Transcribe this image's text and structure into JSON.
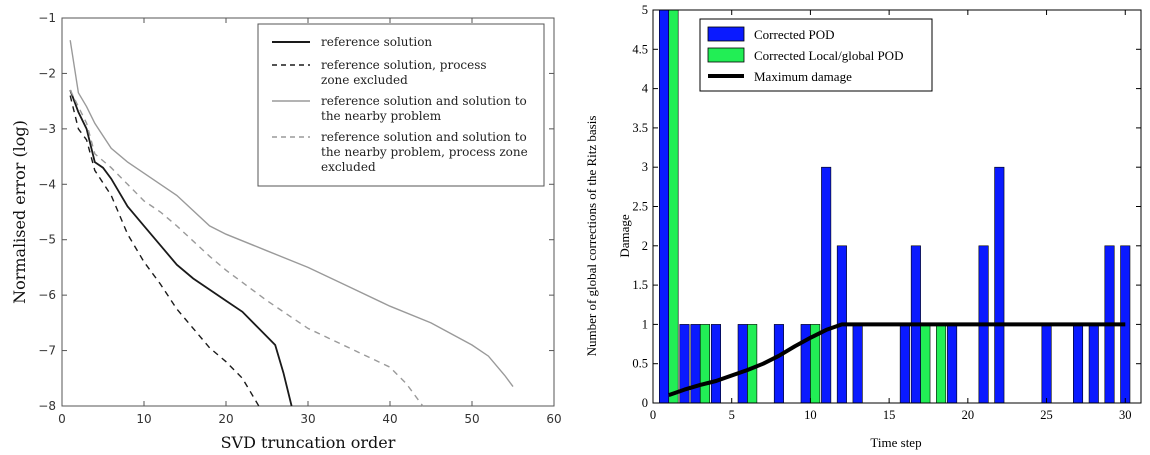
{
  "chart_data": [
    {
      "type": "line",
      "xlabel": "SVD truncation order",
      "ylabel": "Normalised error (log)",
      "xlim": [
        0,
        60
      ],
      "ylim": [
        -8,
        -1
      ],
      "xticks": [
        "0",
        "10",
        "20",
        "30",
        "40",
        "50",
        "60"
      ],
      "yticks": [
        "-1",
        "-2",
        "-3",
        "-4",
        "-5",
        "-6",
        "-7",
        "-8"
      ],
      "legend_position": "top-right",
      "series": [
        {
          "name": "reference solution",
          "style": "solid",
          "color": "#1a1a1a",
          "points": [
            [
              1,
              -2.3
            ],
            [
              2,
              -2.7
            ],
            [
              3,
              -3.0
            ],
            [
              4,
              -3.6
            ],
            [
              5,
              -3.7
            ],
            [
              6,
              -3.9
            ],
            [
              8,
              -4.4
            ],
            [
              10,
              -4.75
            ],
            [
              12,
              -5.1
            ],
            [
              14,
              -5.45
            ],
            [
              16,
              -5.7
            ],
            [
              18,
              -5.9
            ],
            [
              20,
              -6.1
            ],
            [
              22,
              -6.3
            ],
            [
              24,
              -6.6
            ],
            [
              26,
              -6.9
            ],
            [
              27,
              -7.4
            ],
            [
              28,
              -8.0
            ]
          ]
        },
        {
          "name": "reference solution, process zone excluded",
          "style": "dashed",
          "color": "#1a1a1a",
          "points": [
            [
              1,
              -2.4
            ],
            [
              2,
              -3.0
            ],
            [
              3,
              -3.2
            ],
            [
              4,
              -3.75
            ],
            [
              6,
              -4.2
            ],
            [
              8,
              -4.9
            ],
            [
              10,
              -5.4
            ],
            [
              12,
              -5.8
            ],
            [
              14,
              -6.25
            ],
            [
              16,
              -6.6
            ],
            [
              18,
              -6.95
            ],
            [
              20,
              -7.2
            ],
            [
              22,
              -7.5
            ],
            [
              24,
              -8.0
            ]
          ]
        },
        {
          "name": "reference solution and solution to the nearby problem",
          "style": "solid",
          "color": "#9a9a9a",
          "points": [
            [
              1,
              -1.4
            ],
            [
              2,
              -2.35
            ],
            [
              3,
              -2.6
            ],
            [
              4,
              -2.9
            ],
            [
              6,
              -3.35
            ],
            [
              8,
              -3.6
            ],
            [
              10,
              -3.8
            ],
            [
              12,
              -4.0
            ],
            [
              14,
              -4.2
            ],
            [
              18,
              -4.75
            ],
            [
              20,
              -4.9
            ],
            [
              25,
              -5.2
            ],
            [
              30,
              -5.5
            ],
            [
              35,
              -5.85
            ],
            [
              40,
              -6.2
            ],
            [
              45,
              -6.5
            ],
            [
              50,
              -6.9
            ],
            [
              52,
              -7.1
            ],
            [
              54,
              -7.45
            ],
            [
              55,
              -7.65
            ]
          ]
        },
        {
          "name": "reference solution and solution to the nearby problem, process zone excluded",
          "style": "dashed",
          "color": "#9a9a9a",
          "points": [
            [
              1,
              -2.3
            ],
            [
              2,
              -2.6
            ],
            [
              3,
              -2.9
            ],
            [
              4,
              -3.45
            ],
            [
              6,
              -3.7
            ],
            [
              8,
              -4.0
            ],
            [
              10,
              -4.3
            ],
            [
              12,
              -4.5
            ],
            [
              14,
              -4.75
            ],
            [
              18,
              -5.3
            ],
            [
              20,
              -5.55
            ],
            [
              25,
              -6.1
            ],
            [
              30,
              -6.6
            ],
            [
              35,
              -6.95
            ],
            [
              40,
              -7.3
            ],
            [
              42,
              -7.6
            ],
            [
              44,
              -8.0
            ]
          ]
        }
      ]
    },
    {
      "type": "bar",
      "xlabel": "Time step",
      "ylabel": "Number of global corrections of the Ritz basis",
      "ylabel2": "Damage",
      "xlim": [
        0,
        31
      ],
      "ylim": [
        0,
        5
      ],
      "xticks": [
        "0",
        "5",
        "10",
        "15",
        "20",
        "25",
        "30"
      ],
      "yticks": [
        "0",
        "0.5",
        "1",
        "1.5",
        "2",
        "2.5",
        "3",
        "3.5",
        "4",
        "4.5",
        "5"
      ],
      "legend_position": "top-left",
      "series": [
        {
          "name": "Corrected POD",
          "color": "#0a1aff",
          "x": [
            1,
            2,
            3,
            4,
            6,
            8,
            10,
            11,
            12,
            13,
            16,
            17,
            19,
            21,
            22,
            25,
            27,
            28,
            29,
            30
          ],
          "values": [
            5,
            1,
            1,
            1,
            1,
            1,
            1,
            3,
            2,
            1,
            1,
            2,
            1,
            2,
            3,
            1,
            1,
            1,
            2,
            2
          ]
        },
        {
          "name": "Corrected Local/global POD",
          "color": "#22ee55",
          "x": [
            1,
            3,
            6,
            10,
            17,
            18
          ],
          "values": [
            5,
            1,
            1,
            1,
            1,
            1
          ]
        },
        {
          "name": "Maximum damage",
          "color": "#000000",
          "kind": "line",
          "x": [
            1,
            2,
            3,
            4,
            5,
            6,
            7,
            8,
            9,
            10,
            11,
            12,
            13,
            14,
            15,
            20,
            25,
            30
          ],
          "values": [
            0.1,
            0.17,
            0.23,
            0.28,
            0.35,
            0.42,
            0.5,
            0.6,
            0.72,
            0.83,
            0.93,
            1.0,
            1.0,
            1.0,
            1.0,
            1.0,
            1.0,
            1.0
          ]
        }
      ]
    }
  ]
}
